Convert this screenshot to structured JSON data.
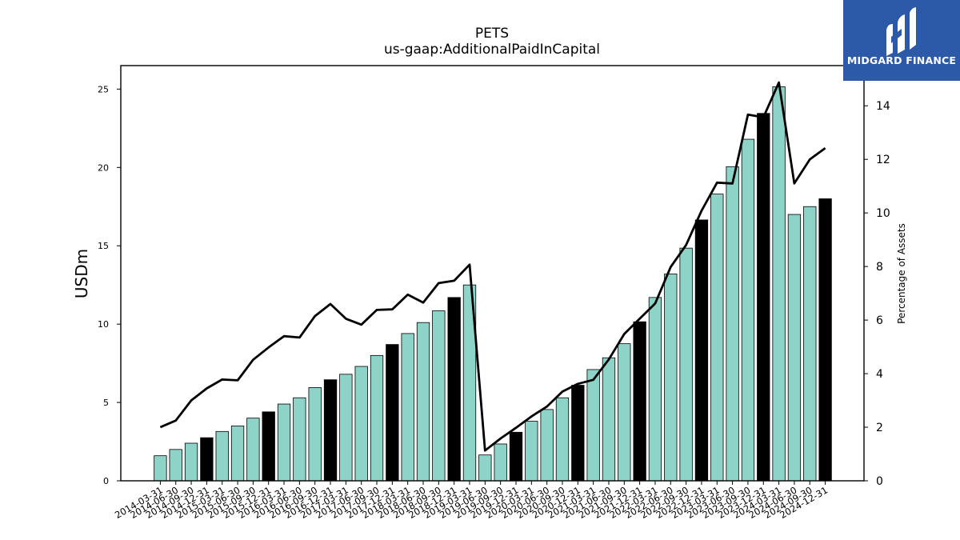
{
  "chart_data": {
    "type": "bar",
    "title": "PETS",
    "subtitle": "us-gaap:AdditionalPaidInCapital",
    "ylabel": "USDm",
    "y2label": "Percentage of Assets",
    "ylim": [
      0,
      26.5
    ],
    "y2lim": [
      0,
      15.5
    ],
    "yticks": [
      0,
      5,
      10,
      15,
      20,
      25
    ],
    "y2ticks": [
      0,
      2,
      4,
      6,
      8,
      10,
      12,
      14
    ],
    "categories": [
      "2014-03-31",
      "2014-06-30",
      "2014-09-30",
      "2014-12-31",
      "2015-03-31",
      "2015-06-30",
      "2015-09-30",
      "2015-12-31",
      "2016-03-31",
      "2016-06-30",
      "2016-09-30",
      "2016-12-31",
      "2017-03-31",
      "2017-06-30",
      "2017-09-30",
      "2017-12-31",
      "2018-03-31",
      "2018-06-30",
      "2018-09-30",
      "2018-12-31",
      "2019-03-31",
      "2019-06-30",
      "2019-09-30",
      "2019-12-31",
      "2020-03-31",
      "2020-06-30",
      "2020-09-30",
      "2020-12-31",
      "2021-03-31",
      "2021-06-30",
      "2021-09-30",
      "2021-12-31",
      "2022-03-31",
      "2022-06-30",
      "2022-09-30",
      "2022-12-31",
      "2023-03-31",
      "2023-06-30",
      "2023-09-30",
      "2023-12-31",
      "2024-03-31",
      "2024-06-30",
      "2024-09-30",
      "2024-12-31"
    ],
    "series": [
      {
        "type": "bar",
        "values": [
          1.6,
          2.0,
          2.4,
          2.75,
          3.15,
          3.5,
          4.0,
          4.4,
          4.9,
          5.3,
          5.95,
          6.45,
          6.8,
          7.3,
          8.0,
          8.7,
          9.4,
          10.1,
          10.85,
          11.7,
          12.5,
          1.65,
          2.35,
          3.1,
          3.8,
          4.55,
          5.3,
          6.1,
          7.1,
          7.85,
          8.75,
          10.15,
          11.7,
          13.2,
          14.85,
          16.65,
          18.3,
          20.05,
          21.8,
          23.45,
          25.15,
          17.0,
          17.5,
          18.0
        ]
      },
      {
        "type": "line",
        "axis": "right",
        "values": [
          2.0,
          2.25,
          3.0,
          3.45,
          3.78,
          3.75,
          4.52,
          4.98,
          5.4,
          5.35,
          6.15,
          6.6,
          6.05,
          5.83,
          6.38,
          6.4,
          6.95,
          6.65,
          7.38,
          7.47,
          8.07,
          1.13,
          1.58,
          1.98,
          2.4,
          2.77,
          3.33,
          3.62,
          3.77,
          4.53,
          5.48,
          6.05,
          6.62,
          7.98,
          8.8,
          10.08,
          11.13,
          11.1,
          13.67,
          13.57,
          14.87,
          11.1,
          12.0,
          12.42
        ]
      }
    ],
    "year_end_color": "#000000",
    "bar_color": "#8ed3c7",
    "line_color": "#000000"
  },
  "logo": {
    "text": "MIDGARD FINANCE",
    "color": "#2d5aa8"
  }
}
